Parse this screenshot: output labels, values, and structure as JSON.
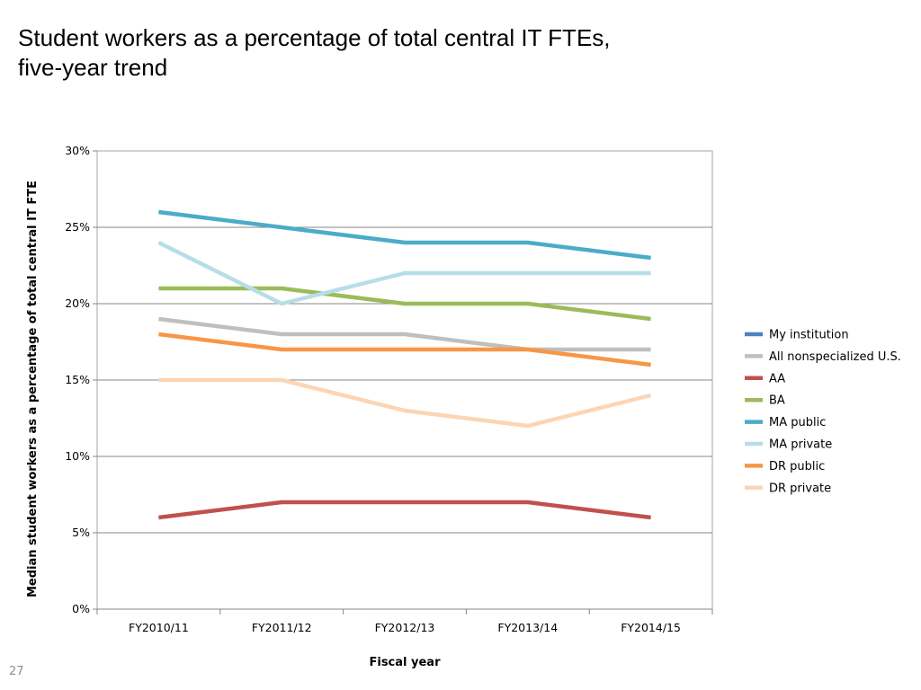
{
  "slide": {
    "title_lines": [
      "Student workers as a percentage of total central IT FTEs,",
      "five-year trend"
    ],
    "page_number": "27"
  },
  "chart_data": {
    "type": "line",
    "title": "",
    "xlabel": "Fiscal year",
    "ylabel": "Median student workers as a percentage of total central IT FTE",
    "categories": [
      "FY2010/11",
      "FY2011/12",
      "FY2012/13",
      "FY2013/14",
      "FY2014/15"
    ],
    "ylim": [
      0,
      30
    ],
    "yticks": [
      0,
      5,
      10,
      15,
      20,
      25,
      30
    ],
    "ytick_labels": [
      "0%",
      "5%",
      "10%",
      "15%",
      "20%",
      "25%",
      "30%"
    ],
    "grid": true,
    "legend_position": "right",
    "series": [
      {
        "name": "My institution",
        "color": "#4f81bd",
        "values": [
          null,
          null,
          null,
          null,
          null
        ]
      },
      {
        "name": "All nonspecialized U.S.",
        "color": "#bfbfbf",
        "values": [
          19,
          18,
          18,
          17,
          17
        ]
      },
      {
        "name": "AA",
        "color": "#c0504d",
        "values": [
          6,
          7,
          7,
          7,
          6
        ]
      },
      {
        "name": "BA",
        "color": "#9bbb59",
        "values": [
          21,
          21,
          20,
          20,
          19
        ]
      },
      {
        "name": "MA public",
        "color": "#4bacc6",
        "values": [
          26,
          25,
          24,
          24,
          23
        ]
      },
      {
        "name": "MA private",
        "color": "#b7dee8",
        "values": [
          24,
          20,
          22,
          22,
          22
        ]
      },
      {
        "name": "DR public",
        "color": "#f79646",
        "values": [
          18,
          17,
          17,
          17,
          16
        ]
      },
      {
        "name": "DR private",
        "color": "#fcd5b5",
        "values": [
          15,
          15,
          13,
          12,
          14
        ]
      }
    ]
  }
}
